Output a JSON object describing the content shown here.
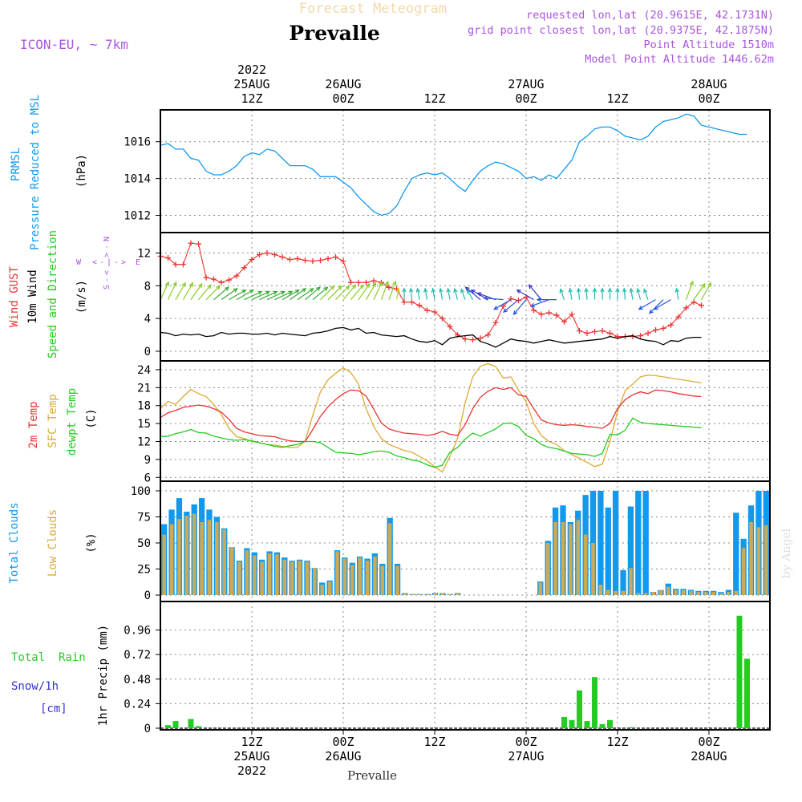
{
  "header": {
    "product_title": "Forecast Meteogram",
    "location": "Prevalle",
    "model": "ICON-EU, ~ 7km",
    "requested": "requested lon,lat (20.9615E, 42.1731N)",
    "grid_point": "grid point closest lon,lat (20.9375E, 42.1875N)",
    "point_altitude": "Point Altitude 1510m",
    "model_altitude": "Model Point Altitude 1446.62m",
    "footer_location": "Prevalle",
    "watermark": "by Angel"
  },
  "colors": {
    "pressure": "#1199ee",
    "gust": "#ee3333",
    "wind10m": "#000000",
    "temp2m": "#ee3333",
    "sfc_temp": "#ddaa33",
    "dewpt": "#22cc22",
    "total_cloud": "#1199ee",
    "low_cloud": "#ccaa55",
    "rain": "#22cc22",
    "snow": "#3333cc",
    "label_purple": "#aa55dd",
    "grid": "#888888"
  },
  "time_axis": {
    "top": [
      {
        "t": 12,
        "year": "2022",
        "date": "25AUG",
        "hour": "12Z"
      },
      {
        "t": 24,
        "year": "",
        "date": "26AUG",
        "hour": "00Z"
      },
      {
        "t": 36,
        "year": "",
        "date": "",
        "hour": "12Z"
      },
      {
        "t": 48,
        "year": "",
        "date": "27AUG",
        "hour": "00Z"
      },
      {
        "t": 60,
        "year": "",
        "date": "",
        "hour": "12Z"
      },
      {
        "t": 72,
        "year": "",
        "date": "28AUG",
        "hour": "00Z"
      }
    ],
    "bottom": [
      {
        "t": 12,
        "hour": "12Z",
        "date": "25AUG",
        "year": "2022"
      },
      {
        "t": 24,
        "hour": "00Z",
        "date": "26AUG",
        "year": ""
      },
      {
        "t": 36,
        "hour": "12Z",
        "date": "",
        "year": ""
      },
      {
        "t": 48,
        "hour": "00Z",
        "date": "27AUG",
        "year": ""
      },
      {
        "t": 60,
        "hour": "12Z",
        "date": "",
        "year": ""
      },
      {
        "t": 72,
        "hour": "00Z",
        "date": "28AUG",
        "year": ""
      }
    ]
  },
  "chart_data": [
    {
      "type": "line",
      "id": "pressure",
      "title": "PRMSL Pressure Reduced to MSL",
      "label_lines": [
        "PRMSL",
        "Pressure Reduced to MSL"
      ],
      "unit": "(hPa)",
      "ylim": [
        1011.5,
        1017.6
      ],
      "yticks": [
        "1012",
        "1014",
        "1016"
      ],
      "series": [
        {
          "name": "PRMSL",
          "x": [
            0,
            1,
            2,
            3,
            4,
            5,
            6,
            7,
            8,
            9,
            10,
            11,
            12,
            13,
            14,
            15,
            16,
            17,
            18,
            19,
            20,
            21,
            22,
            23,
            24,
            25,
            26,
            27,
            28,
            29,
            30,
            31,
            32,
            33,
            34,
            35,
            36,
            37,
            38,
            39,
            40,
            41,
            42,
            43,
            44,
            45,
            46,
            47,
            48,
            49,
            50,
            51,
            52,
            53,
            54,
            55,
            56,
            57,
            58,
            59,
            60,
            61,
            62,
            63,
            64,
            65,
            66,
            67,
            68,
            69,
            70,
            71,
            72,
            73,
            74,
            75,
            76,
            77
          ],
          "values": [
            1015.8,
            1015.9,
            1015.6,
            1015.6,
            1015.1,
            1015.0,
            1014.4,
            1014.2,
            1014.2,
            1014.4,
            1014.7,
            1015.2,
            1015.4,
            1015.3,
            1015.6,
            1015.5,
            1015.1,
            1014.7,
            1014.7,
            1014.7,
            1014.5,
            1014.1,
            1014.1,
            1014.1,
            1013.8,
            1013.5,
            1013.0,
            1012.6,
            1012.2,
            1012.0,
            1012.1,
            1012.5,
            1013.3,
            1014.0,
            1014.2,
            1014.3,
            1014.2,
            1014.3,
            1014.0,
            1013.6,
            1013.3,
            1013.9,
            1014.4,
            1014.7,
            1014.9,
            1014.8,
            1014.6,
            1014.4,
            1014.0,
            1014.1,
            1013.9,
            1014.2,
            1014.0,
            1014.5,
            1015.0,
            1016.0,
            1016.3,
            1016.7,
            1016.8,
            1016.8,
            1016.6,
            1016.3,
            1016.2,
            1016.1,
            1016.3,
            1016.8,
            1017.1,
            1017.2,
            1017.3,
            1017.5,
            1017.4,
            1016.9,
            1016.8,
            1016.7,
            1016.6,
            1016.5,
            1016.4,
            1016.4
          ]
        }
      ]
    },
    {
      "type": "line",
      "id": "wind",
      "title": "Wind GUST / 10m Wind Speed and Direction",
      "label_gust": "Wind GUST",
      "label_wind": "10m Wind",
      "label_dir": "Speed and Direction",
      "unit": "(m/s)",
      "compass": {
        "n": "N",
        "s": "S",
        "e": "E",
        "w": "W",
        "dash": "-",
        "bar": "|",
        "left": "<",
        "right": ">"
      },
      "ylim": [
        0,
        14
      ],
      "yticks": [
        "0",
        "4",
        "8",
        "12"
      ],
      "series": [
        {
          "name": "Wind GUST",
          "values": [
            11.6,
            11.4,
            10.6,
            10.6,
            13.2,
            13.1,
            9.0,
            8.8,
            8.4,
            8.7,
            9.2,
            10.2,
            11.2,
            11.8,
            12.0,
            11.8,
            11.5,
            11.2,
            11.3,
            11.1,
            11.0,
            11.1,
            11.3,
            11.5,
            11.0,
            8.4,
            8.4,
            8.4,
            8.6,
            8.4,
            7.8,
            7.6,
            6.0,
            6.0,
            5.6,
            5.0,
            4.8,
            4.0,
            3.0,
            2.0,
            1.5,
            1.4,
            1.6,
            2.0,
            3.5,
            5.5,
            6.4,
            6.2,
            6.6,
            5.0,
            4.5,
            4.7,
            4.4,
            3.6,
            4.5,
            2.5,
            2.2,
            2.4,
            2.5,
            2.2,
            1.8,
            1.8,
            1.8,
            1.9,
            2.2,
            2.6,
            2.8,
            3.2,
            4.2,
            5.3,
            6.0,
            5.6
          ],
          "marker": "+"
        },
        {
          "name": "10m Wind",
          "values": [
            2.3,
            2.2,
            1.9,
            2.1,
            2.0,
            2.1,
            1.8,
            1.9,
            2.3,
            2.1,
            2.2,
            2.2,
            2.1,
            2.1,
            2.2,
            2.0,
            2.2,
            2.1,
            2.0,
            1.9,
            2.2,
            2.3,
            2.5,
            2.8,
            2.9,
            2.6,
            2.8,
            2.2,
            2.3,
            2.0,
            1.9,
            1.8,
            1.9,
            1.5,
            1.2,
            1.1,
            1.3,
            0.8,
            1.6,
            1.8,
            1.9,
            2.0,
            1.2,
            0.9,
            0.5,
            1.0,
            1.5,
            1.3,
            1.2,
            1.0,
            1.2,
            1.4,
            1.2,
            1.0,
            1.1,
            1.2,
            1.3,
            1.4,
            1.5,
            1.8,
            1.6,
            1.8,
            1.9,
            1.5,
            1.3,
            1.2,
            0.8,
            1.3,
            1.2,
            1.6,
            1.7,
            1.7
          ]
        },
        {
          "name": "Direction arrows (deg)",
          "values": [
            205,
            205,
            210,
            210,
            215,
            220,
            225,
            230,
            235,
            240,
            240,
            245,
            245,
            245,
            245,
            245,
            240,
            235,
            235,
            230,
            230,
            225,
            225,
            225,
            220,
            220,
            215,
            210,
            205,
            200,
            200,
            190,
            180,
            175,
            170,
            170,
            170,
            170,
            170,
            165,
            160,
            150,
            130,
            120,
            110,
            95,
            60,
            50,
            40,
            120,
            140,
            70,
            90,
            160,
            170,
            175,
            175,
            180,
            180,
            180,
            180,
            175,
            170,
            165,
            160,
            60,
            45,
            60,
            170,
            200,
            215,
            210
          ]
        }
      ]
    },
    {
      "type": "line",
      "id": "temperature",
      "title": "2m Temp / SFC Temp / dewpt Temp",
      "label_lines": [
        "2m Temp",
        "SFC Temp",
        "dewpt Temp"
      ],
      "unit": "(C)",
      "ylim": [
        5.9,
        25.2
      ],
      "yticks": [
        "6",
        "9",
        "12",
        "15",
        "18",
        "21",
        "24"
      ],
      "series": [
        {
          "name": "2m Temp",
          "values": [
            16.0,
            16.8,
            17.2,
            17.7,
            17.9,
            18.1,
            17.9,
            17.5,
            16.9,
            15.7,
            14.2,
            13.6,
            13.3,
            13.0,
            12.9,
            12.8,
            12.4,
            12.1,
            12.0,
            12.0,
            14.0,
            16.2,
            17.8,
            19.0,
            20.0,
            20.6,
            20.5,
            19.6,
            17.4,
            15.1,
            14.1,
            13.7,
            13.4,
            13.3,
            13.2,
            13.0,
            13.2,
            13.7,
            13.2,
            13.0,
            14.8,
            17.5,
            19.4,
            20.4,
            21.0,
            20.7,
            21.0,
            19.8,
            19.5,
            17.5,
            15.6,
            15.1,
            14.8,
            14.7,
            14.8,
            14.7,
            14.5,
            14.4,
            14.2,
            15.0,
            17.5,
            19.0,
            19.8,
            20.3,
            20.0,
            20.6,
            20.5,
            20.3,
            20.0,
            19.8,
            19.6,
            19.5
          ]
        },
        {
          "name": "SFC Temp",
          "values": [
            17.5,
            18.7,
            18.2,
            19.5,
            20.7,
            20.0,
            19.5,
            18.2,
            16.5,
            14.2,
            12.8,
            12.5,
            12.0,
            11.8,
            11.5,
            11.4,
            11.2,
            11.0,
            11.0,
            12.1,
            16.4,
            20.3,
            22.3,
            23.4,
            24.3,
            23.5,
            21.6,
            17.5,
            14.5,
            12.5,
            11.5,
            11.0,
            10.5,
            10.2,
            9.5,
            8.8,
            7.8,
            6.9,
            9.5,
            12.5,
            18.5,
            22.8,
            24.6,
            25.0,
            24.5,
            22.6,
            22.8,
            20.6,
            18.6,
            15.0,
            13.0,
            12.0,
            11.5,
            10.5,
            9.8,
            9.2,
            8.5,
            7.8,
            8.2,
            12.0,
            17.0,
            20.5,
            21.6,
            22.8,
            23.1,
            23.0,
            22.8,
            22.6,
            22.4,
            22.2,
            22.0,
            21.8
          ]
        },
        {
          "name": "dewpt Temp",
          "values": [
            12.8,
            12.9,
            13.3,
            13.6,
            14.0,
            13.5,
            13.4,
            12.9,
            12.6,
            12.3,
            12.2,
            12.3,
            12.1,
            11.8,
            11.5,
            11.2,
            11.0,
            11.3,
            11.5,
            12.0,
            12.0,
            11.8,
            11.0,
            10.2,
            10.1,
            10.0,
            9.8,
            10.0,
            10.3,
            10.4,
            10.2,
            9.6,
            9.3,
            8.9,
            8.7,
            8.1,
            7.7,
            8.0,
            10.2,
            11.0,
            12.4,
            13.4,
            12.9,
            13.5,
            14.1,
            15.0,
            15.1,
            14.5,
            13.0,
            12.5,
            11.5,
            11.0,
            10.8,
            10.4,
            10.0,
            9.9,
            9.8,
            9.5,
            10.0,
            13.2,
            13.1,
            13.9,
            15.9,
            15.2,
            15.0,
            14.9,
            14.8,
            14.7,
            14.6,
            14.5,
            14.4,
            14.3
          ]
        }
      ]
    },
    {
      "type": "bar",
      "id": "clouds",
      "title": "Total Clouds / Low Clouds",
      "label_total": "Total Clouds",
      "label_low": "Low Clouds",
      "unit": "(%)",
      "ylim": [
        0,
        100
      ],
      "yticks": [
        "0",
        "25",
        "50",
        "75",
        "100"
      ],
      "series": [
        {
          "name": "Total Clouds",
          "values": [
            68,
            82,
            93,
            80,
            87,
            93,
            82,
            75,
            64,
            46,
            33,
            45,
            41,
            34,
            42,
            41,
            36,
            33,
            34,
            33,
            26,
            12,
            14,
            43,
            36,
            31,
            37,
            35,
            40,
            30,
            74,
            30,
            2,
            1,
            1,
            1,
            2,
            2,
            1,
            2,
            0,
            0,
            0,
            0,
            0,
            0,
            0,
            0,
            0,
            0,
            13,
            52,
            84,
            86,
            70,
            81,
            96,
            100,
            100,
            84,
            100,
            24,
            85,
            100,
            100,
            3,
            5,
            11,
            6,
            6,
            5,
            4,
            4,
            4,
            3,
            5,
            79,
            54,
            86,
            100,
            100
          ]
        },
        {
          "name": "Low Clouds",
          "values": [
            58,
            68,
            73,
            76,
            78,
            70,
            72,
            70,
            63,
            46,
            32,
            43,
            38,
            32,
            40,
            39,
            34,
            32,
            33,
            32,
            26,
            10,
            13,
            42,
            35,
            29,
            36,
            33,
            37,
            28,
            69,
            28,
            2,
            1,
            1,
            1,
            2,
            2,
            1,
            2,
            0,
            0,
            0,
            0,
            0,
            0,
            0,
            0,
            0,
            0,
            12,
            50,
            70,
            70,
            68,
            72,
            58,
            50,
            10,
            5,
            4,
            4,
            26,
            2,
            2,
            3,
            5,
            8,
            5,
            5,
            4,
            3,
            3,
            3,
            2,
            3,
            4,
            45,
            70,
            65,
            67
          ]
        }
      ]
    },
    {
      "type": "bar",
      "id": "precip",
      "title": "Total Rain / Snow/1h",
      "label_rain": "Total  Rain",
      "label_snow": "Snow/1h",
      "label_snow_unit": "[cm]",
      "unit": "1hr Precip (mm)",
      "ylim": [
        0,
        1.2
      ],
      "yticks": [
        "0",
        "0.24",
        "0.48",
        "0.72",
        "0.96"
      ],
      "series": [
        {
          "name": "Total Rain",
          "x": [
            1,
            2,
            4,
            5,
            53,
            54,
            55,
            56,
            57,
            58,
            59,
            62,
            76,
            77
          ],
          "values": [
            0.03,
            0.07,
            0.09,
            0.02,
            0.11,
            0.08,
            0.37,
            0.07,
            0.5,
            0.04,
            0.08,
            0.01,
            1.1,
            0.68
          ]
        }
      ]
    }
  ]
}
